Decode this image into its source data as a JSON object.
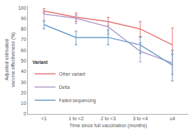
{
  "chart_data": {
    "type": "line",
    "xlabel": "Time since full vaccination (months)",
    "ylabel": "Adjusted estimated vaccine effectiveness (%)",
    "categories": [
      "<1",
      "1 to <2",
      "2 to <3",
      "3 to <4",
      "≥4"
    ],
    "series": [
      {
        "name": "Other variant",
        "color": "#e87070",
        "values": [
          97,
          91,
          87,
          80,
          65
        ],
        "lower": [
          95,
          87,
          83,
          72,
          56
        ],
        "upper": [
          99,
          95,
          91,
          87,
          81
        ]
      },
      {
        "name": "Delta",
        "color": "#b09ac8",
        "values": [
          94,
          90,
          82,
          59,
          48
        ],
        "lower": [
          88,
          85,
          75,
          49,
          37
        ],
        "upper": [
          97,
          93,
          87,
          67,
          56
        ]
      },
      {
        "name": "Failed sequencing",
        "color": "#6699cc",
        "values": [
          84,
          72,
          72,
          65,
          46
        ],
        "lower": [
          80,
          65,
          65,
          57,
          31
        ],
        "upper": [
          87,
          78,
          79,
          73,
          60
        ]
      }
    ],
    "ylim": [
      0,
      102
    ],
    "yticks": [
      0,
      10,
      20,
      30,
      40,
      50,
      60,
      70,
      80,
      90,
      100
    ],
    "grid": false,
    "legend": "lower left",
    "legend_title": "Variant"
  }
}
